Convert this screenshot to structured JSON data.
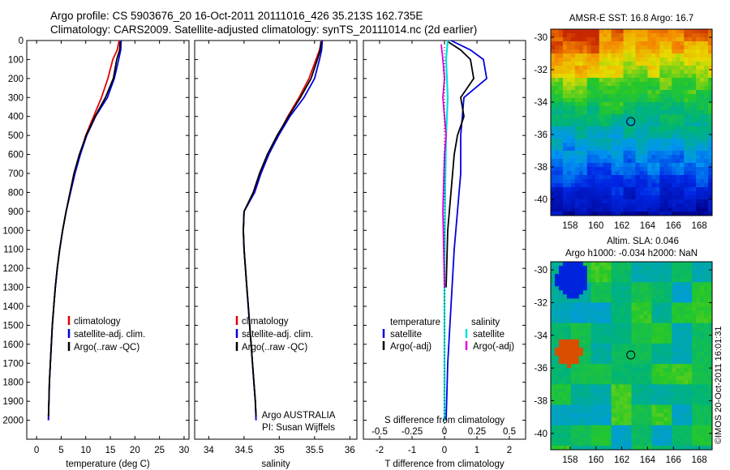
{
  "header": {
    "line1": "Argo profile: CS 5903676_20 16-Oct-2011 20111016_426 35.213S 162.735E",
    "line2": "Climatology: CARS2009. Satellite-adjusted climatology: synTS_20111014.nc (2d earlier)"
  },
  "side_label": "©IMOS 20-Oct-2011 16:01:31",
  "colors": {
    "climatology": "#e00000",
    "satellite": "#0000e0",
    "argo": "#000000",
    "salinity_sat": "#00e0e0",
    "salinity_argo": "#e000e0"
  },
  "chart_data": [
    {
      "type": "line",
      "xlabel": "temperature (deg C)",
      "ylabel": "",
      "xlim": [
        -2,
        31
      ],
      "ylim": [
        0,
        2100
      ],
      "y_inverted": true,
      "xticks": [
        0,
        5,
        10,
        15,
        20,
        25,
        30
      ],
      "yticks": [
        0,
        100,
        200,
        300,
        400,
        500,
        600,
        700,
        800,
        900,
        1000,
        1100,
        1200,
        1300,
        1400,
        1500,
        1600,
        1700,
        1800,
        1900,
        2000
      ],
      "legend": [
        "climatology",
        "satellite-adj. clim.",
        "Argo(..raw -QC)"
      ],
      "series": [
        {
          "name": "climatology",
          "points": [
            [
              16.8,
              0
            ],
            [
              16.4,
              50
            ],
            [
              15.5,
              100
            ],
            [
              14.5,
              200
            ],
            [
              13.2,
              300
            ],
            [
              11.6,
              400
            ],
            [
              10.0,
              500
            ],
            [
              8.8,
              600
            ],
            [
              7.8,
              700
            ],
            [
              6.9,
              800
            ],
            [
              6.0,
              900
            ],
            [
              5.3,
              1000
            ],
            [
              4.7,
              1100
            ],
            [
              4.2,
              1200
            ],
            [
              3.8,
              1300
            ],
            [
              3.5,
              1400
            ],
            [
              3.2,
              1500
            ],
            [
              3.0,
              1600
            ],
            [
              2.8,
              1700
            ],
            [
              2.6,
              1800
            ],
            [
              2.5,
              1900
            ],
            [
              2.4,
              2000
            ]
          ]
        },
        {
          "name": "satellite-adj. clim.",
          "points": [
            [
              17.2,
              0
            ],
            [
              17.1,
              50
            ],
            [
              16.7,
              100
            ],
            [
              15.8,
              200
            ],
            [
              14.4,
              300
            ],
            [
              12.0,
              400
            ],
            [
              10.2,
              500
            ],
            [
              8.9,
              600
            ],
            [
              7.8,
              700
            ],
            [
              6.9,
              800
            ],
            [
              6.0,
              900
            ],
            [
              5.3,
              1000
            ],
            [
              4.7,
              1100
            ],
            [
              4.2,
              1200
            ],
            [
              3.8,
              1300
            ],
            [
              3.5,
              1400
            ],
            [
              3.2,
              1500
            ],
            [
              3.0,
              1600
            ],
            [
              2.8,
              1700
            ],
            [
              2.6,
              1800
            ],
            [
              2.5,
              1900
            ],
            [
              2.4,
              2000
            ]
          ]
        },
        {
          "name": "Argo(..raw -QC)",
          "points": [
            [
              17.0,
              5
            ],
            [
              16.9,
              50
            ],
            [
              16.3,
              100
            ],
            [
              15.6,
              200
            ],
            [
              14.0,
              300
            ],
            [
              11.9,
              400
            ],
            [
              10.1,
              500
            ],
            [
              8.7,
              600
            ],
            [
              7.6,
              700
            ],
            [
              6.8,
              800
            ],
            [
              6.0,
              900
            ],
            [
              5.3,
              1000
            ],
            [
              4.7,
              1100
            ],
            [
              4.2,
              1200
            ],
            [
              3.8,
              1300
            ],
            [
              3.5,
              1400
            ],
            [
              3.2,
              1500
            ],
            [
              3.0,
              1600
            ],
            [
              2.8,
              1700
            ],
            [
              2.6,
              1800
            ],
            [
              2.5,
              1900
            ],
            [
              2.4,
              1980
            ]
          ]
        }
      ]
    },
    {
      "type": "line",
      "xlabel": "salinity",
      "xlim": [
        33.8,
        36.1
      ],
      "ylim": [
        0,
        2100
      ],
      "y_inverted": true,
      "xticks": [
        34,
        34.5,
        35,
        35.5,
        36
      ],
      "legend": [
        "climatology",
        "satellite-adj. clim.",
        "Argo(..raw -QC)"
      ],
      "annotation": [
        "Argo AUSTRALIA",
        "PI: Susan Wijffels"
      ],
      "series": [
        {
          "name": "climatology",
          "points": [
            [
              35.6,
              0
            ],
            [
              35.57,
              50
            ],
            [
              35.52,
              100
            ],
            [
              35.42,
              200
            ],
            [
              35.28,
              300
            ],
            [
              35.12,
              400
            ],
            [
              34.98,
              500
            ],
            [
              34.85,
              600
            ],
            [
              34.74,
              700
            ],
            [
              34.65,
              800
            ],
            [
              34.5,
              900
            ],
            [
              34.49,
              1000
            ],
            [
              34.5,
              1100
            ],
            [
              34.52,
              1200
            ],
            [
              34.54,
              1300
            ],
            [
              34.56,
              1400
            ],
            [
              34.58,
              1500
            ],
            [
              34.6,
              1600
            ],
            [
              34.62,
              1700
            ],
            [
              34.64,
              1800
            ],
            [
              34.66,
              1900
            ],
            [
              34.67,
              2000
            ]
          ]
        },
        {
          "name": "satellite-adj. clim.",
          "points": [
            [
              35.61,
              0
            ],
            [
              35.6,
              50
            ],
            [
              35.57,
              100
            ],
            [
              35.5,
              200
            ],
            [
              35.35,
              300
            ],
            [
              35.15,
              400
            ],
            [
              34.99,
              500
            ],
            [
              34.85,
              600
            ],
            [
              34.74,
              700
            ],
            [
              34.65,
              800
            ],
            [
              34.5,
              900
            ],
            [
              34.49,
              1000
            ],
            [
              34.5,
              1100
            ],
            [
              34.52,
              1200
            ],
            [
              34.54,
              1300
            ],
            [
              34.56,
              1400
            ],
            [
              34.58,
              1500
            ],
            [
              34.6,
              1600
            ],
            [
              34.62,
              1700
            ],
            [
              34.64,
              1800
            ],
            [
              34.66,
              1900
            ],
            [
              34.67,
              2000
            ]
          ]
        },
        {
          "name": "Argo(..raw -QC)",
          "points": [
            [
              35.59,
              5
            ],
            [
              35.58,
              50
            ],
            [
              35.54,
              100
            ],
            [
              35.45,
              200
            ],
            [
              35.3,
              300
            ],
            [
              35.13,
              400
            ],
            [
              34.97,
              500
            ],
            [
              34.83,
              600
            ],
            [
              34.72,
              700
            ],
            [
              34.63,
              800
            ],
            [
              34.5,
              900
            ],
            [
              34.49,
              1000
            ],
            [
              34.5,
              1100
            ],
            [
              34.52,
              1200
            ],
            [
              34.54,
              1300
            ],
            [
              34.56,
              1400
            ],
            [
              34.58,
              1500
            ],
            [
              34.6,
              1600
            ],
            [
              34.62,
              1700
            ],
            [
              34.64,
              1800
            ],
            [
              34.66,
              1900
            ],
            [
              34.67,
              1980
            ]
          ]
        }
      ]
    },
    {
      "type": "line",
      "xlabel": "T difference from climatology",
      "xlabel_top": "S difference from climatology",
      "xlim": [
        -2.5,
        2.5
      ],
      "ylim": [
        0,
        2100
      ],
      "y_inverted": true,
      "xticks": [
        -2,
        -1,
        0,
        1,
        2
      ],
      "xtick_labels_top": [
        "-0.5",
        "-0.25",
        "0",
        "0.25",
        "0.5"
      ],
      "legend_left_title": "temperature",
      "legend_right_title": "salinity",
      "legend": [
        "satellite",
        "Argo(-adj)",
        "satellite",
        "Argo(-adj)"
      ],
      "series": [
        {
          "name": "satellite",
          "points": [
            [
              0.2,
              0
            ],
            [
              0.8,
              50
            ],
            [
              1.2,
              100
            ],
            [
              1.3,
              200
            ],
            [
              0.6,
              300
            ],
            [
              0.5,
              500
            ],
            [
              0.5,
              700
            ],
            [
              0.4,
              900
            ],
            [
              0.3,
              1100
            ],
            [
              0.2,
              1400
            ],
            [
              0.1,
              1700
            ],
            [
              0.05,
              2000
            ]
          ]
        },
        {
          "name": "Argo(-adj)",
          "points": [
            [
              0.1,
              5
            ],
            [
              0.5,
              50
            ],
            [
              0.8,
              100
            ],
            [
              0.9,
              200
            ],
            [
              0.5,
              300
            ],
            [
              0.6,
              400
            ],
            [
              0.4,
              500
            ],
            [
              0.3,
              600
            ],
            [
              0.2,
              800
            ],
            [
              0.1,
              1000
            ],
            [
              0.05,
              1300
            ]
          ]
        },
        {
          "name": "satellite",
          "points": [
            [
              0.1,
              0
            ],
            [
              0.05,
              100
            ],
            [
              0.1,
              300
            ],
            [
              0.05,
              500
            ],
            [
              0.02,
              800
            ],
            [
              0.0,
              1200
            ],
            [
              0.0,
              1600
            ],
            [
              0.0,
              2000
            ]
          ]
        },
        {
          "name": "Argo(-adj)",
          "points": [
            [
              -0.1,
              20
            ],
            [
              -0.05,
              100
            ],
            [
              0.0,
              200
            ],
            [
              -0.05,
              300
            ],
            [
              0.0,
              400
            ],
            [
              0.05,
              500
            ],
            [
              0.0,
              600
            ],
            [
              -0.05,
              900
            ],
            [
              0.0,
              1300
            ]
          ]
        }
      ]
    },
    {
      "type": "heatmap",
      "title": "AMSR-E SST: 16.8  Argo: 16.7",
      "xlim": [
        156.5,
        169
      ],
      "ylim": [
        -41,
        -29.5
      ],
      "xticks": [
        158,
        160,
        162,
        164,
        166,
        168
      ],
      "yticks": [
        -30,
        -32,
        -34,
        -36,
        -38,
        -40
      ],
      "marker": [
        162.7,
        -35.2
      ]
    },
    {
      "type": "heatmap",
      "title": "Altim. SLA: 0.046",
      "subtitle": "Argo h1000: -0.034  h2000: NaN",
      "xlim": [
        156.5,
        169
      ],
      "ylim": [
        -41,
        -29.5
      ],
      "xticks": [
        158,
        160,
        162,
        164,
        166,
        168
      ],
      "yticks": [
        -30,
        -32,
        -34,
        -36,
        -38,
        -40
      ],
      "marker": [
        162.7,
        -35.2
      ]
    }
  ]
}
